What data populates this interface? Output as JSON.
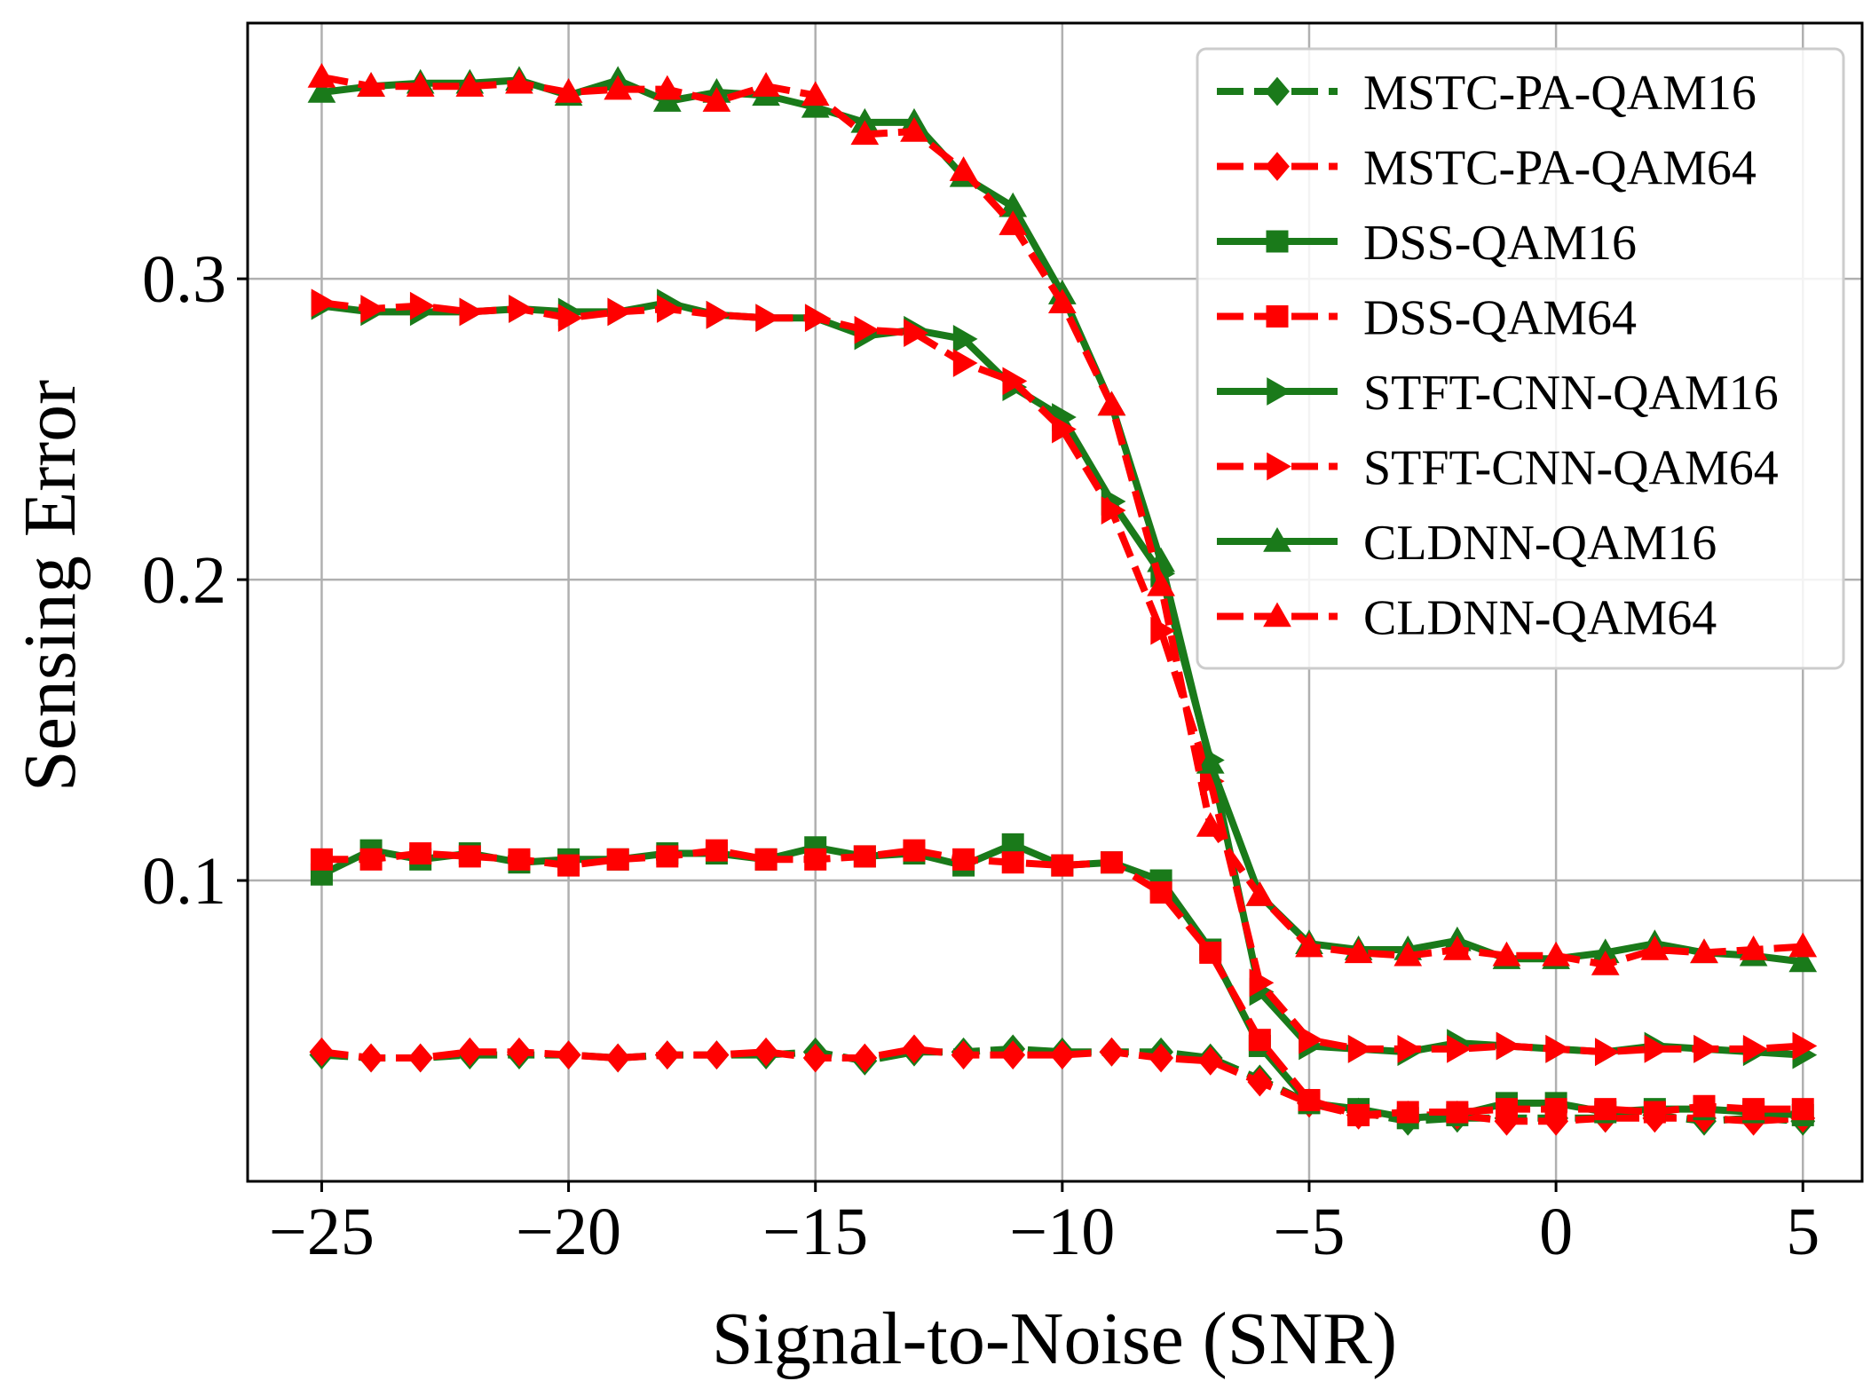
{
  "chart_data": {
    "type": "line",
    "xlabel": "Signal-to-Noise (SNR)",
    "ylabel": "Sensing Error",
    "xlim": [
      -26.5,
      6.2
    ],
    "ylim": [
      0.0,
      0.385
    ],
    "xticks": [
      -25,
      -20,
      -15,
      -10,
      -5,
      0,
      5
    ],
    "xtick_labels": [
      "−25",
      "−20",
      "−15",
      "−10",
      "−5",
      "0",
      "5"
    ],
    "yticks": [
      0.1,
      0.2,
      0.3
    ],
    "ytick_labels": [
      "0.1",
      "0.2",
      "0.3"
    ],
    "grid": true,
    "legend_position": "upper-right",
    "x": [
      -25,
      -24,
      -23,
      -22,
      -21,
      -20,
      -19,
      -18,
      -17,
      -16,
      -15,
      -14,
      -13,
      -12,
      -11,
      -10,
      -9,
      -8,
      -7,
      -6,
      -5,
      -4,
      -3,
      -2,
      -1,
      0,
      1,
      2,
      3,
      4,
      5
    ],
    "series": [
      {
        "name": "MSTC-PA-QAM16",
        "color": "#1a7a1a",
        "linestyle": "dashed",
        "marker": "diamond",
        "values": [
          0.042,
          0.041,
          0.041,
          0.042,
          0.042,
          0.042,
          0.041,
          0.042,
          0.042,
          0.042,
          0.043,
          0.04,
          0.043,
          0.043,
          0.044,
          0.043,
          0.043,
          0.043,
          0.041,
          0.034,
          0.026,
          0.023,
          0.02,
          0.021,
          0.021,
          0.021,
          0.021,
          0.022,
          0.02,
          0.021,
          0.02
        ]
      },
      {
        "name": "MSTC-PA-QAM64",
        "color": "#ff0000",
        "linestyle": "dashed",
        "marker": "diamond",
        "values": [
          0.043,
          0.041,
          0.041,
          0.043,
          0.043,
          0.042,
          0.041,
          0.042,
          0.042,
          0.043,
          0.041,
          0.041,
          0.044,
          0.042,
          0.042,
          0.042,
          0.043,
          0.041,
          0.04,
          0.033,
          0.026,
          0.022,
          0.022,
          0.022,
          0.02,
          0.02,
          0.021,
          0.021,
          0.021,
          0.02,
          0.021
        ]
      },
      {
        "name": "DSS-QAM16",
        "color": "#1a7a1a",
        "linestyle": "solid",
        "marker": "square",
        "values": [
          0.102,
          0.11,
          0.107,
          0.109,
          0.106,
          0.107,
          0.107,
          0.109,
          0.109,
          0.107,
          0.111,
          0.108,
          0.109,
          0.105,
          0.112,
          0.105,
          0.106,
          0.1,
          0.077,
          0.045,
          0.026,
          0.024,
          0.021,
          0.022,
          0.026,
          0.026,
          0.023,
          0.024,
          0.024,
          0.023,
          0.022
        ]
      },
      {
        "name": "DSS-QAM64",
        "color": "#ff0000",
        "linestyle": "dashed",
        "marker": "square",
        "values": [
          0.107,
          0.107,
          0.109,
          0.108,
          0.107,
          0.105,
          0.107,
          0.108,
          0.11,
          0.107,
          0.107,
          0.108,
          0.11,
          0.107,
          0.106,
          0.105,
          0.106,
          0.096,
          0.076,
          0.047,
          0.027,
          0.022,
          0.023,
          0.023,
          0.024,
          0.024,
          0.024,
          0.023,
          0.025,
          0.024,
          0.024
        ]
      },
      {
        "name": "STFT-CNN-QAM16",
        "color": "#1a7a1a",
        "linestyle": "solid",
        "marker": "triangle-right",
        "values": [
          0.291,
          0.289,
          0.289,
          0.289,
          0.29,
          0.289,
          0.289,
          0.292,
          0.288,
          0.287,
          0.287,
          0.281,
          0.283,
          0.28,
          0.264,
          0.254,
          0.226,
          0.202,
          0.14,
          0.063,
          0.045,
          0.044,
          0.043,
          0.046,
          0.045,
          0.044,
          0.043,
          0.045,
          0.044,
          0.043,
          0.042
        ]
      },
      {
        "name": "STFT-CNN-QAM64",
        "color": "#ff0000",
        "linestyle": "dashed",
        "marker": "triangle-right",
        "values": [
          0.292,
          0.29,
          0.291,
          0.289,
          0.29,
          0.287,
          0.289,
          0.29,
          0.288,
          0.287,
          0.287,
          0.283,
          0.282,
          0.272,
          0.266,
          0.25,
          0.223,
          0.183,
          0.133,
          0.066,
          0.047,
          0.044,
          0.044,
          0.044,
          0.045,
          0.044,
          0.043,
          0.044,
          0.044,
          0.044,
          0.045
        ]
      },
      {
        "name": "CLDNN-QAM16",
        "color": "#1a7a1a",
        "linestyle": "solid",
        "marker": "triangle-up",
        "values": [
          0.362,
          0.364,
          0.365,
          0.365,
          0.366,
          0.361,
          0.366,
          0.359,
          0.362,
          0.361,
          0.357,
          0.352,
          0.352,
          0.334,
          0.324,
          0.295,
          0.258,
          0.206,
          0.139,
          0.095,
          0.079,
          0.077,
          0.077,
          0.08,
          0.074,
          0.074,
          0.076,
          0.079,
          0.076,
          0.075,
          0.073
        ]
      },
      {
        "name": "CLDNN-QAM64",
        "color": "#ff0000",
        "linestyle": "dashed",
        "marker": "triangle-up",
        "values": [
          0.367,
          0.364,
          0.364,
          0.364,
          0.365,
          0.362,
          0.363,
          0.363,
          0.359,
          0.364,
          0.361,
          0.348,
          0.349,
          0.336,
          0.318,
          0.292,
          0.258,
          0.198,
          0.118,
          0.095,
          0.078,
          0.076,
          0.075,
          0.077,
          0.075,
          0.075,
          0.072,
          0.077,
          0.076,
          0.077,
          0.078
        ]
      }
    ]
  }
}
